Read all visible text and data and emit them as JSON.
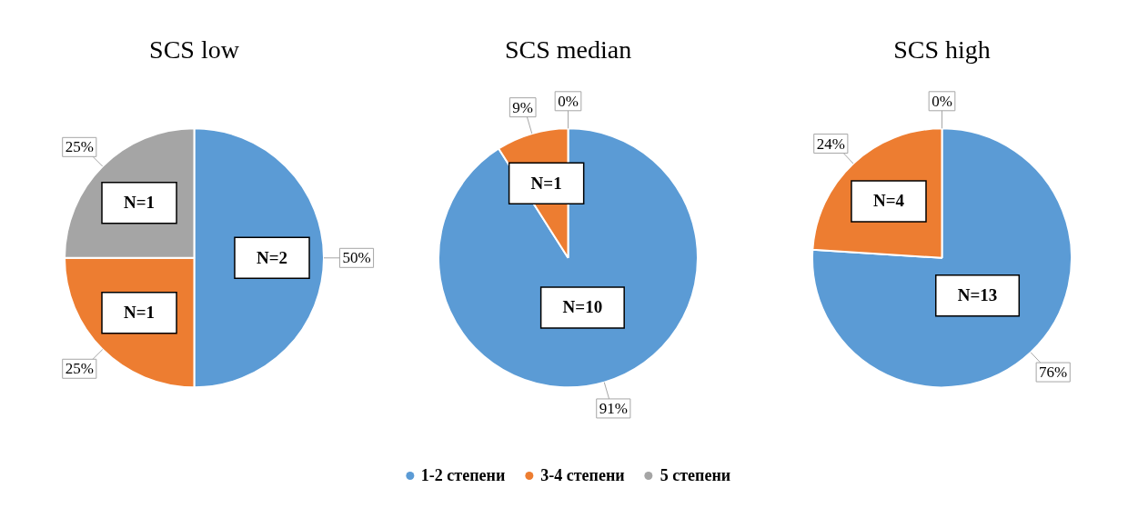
{
  "chart_data": [
    {
      "type": "pie",
      "title": "SCS low",
      "categories": [
        null,
        null,
        null
      ],
      "values": [
        50,
        25,
        25
      ],
      "colors": [
        "#5b9bd5",
        "#ed7d31",
        "#a5a5a5"
      ],
      "value_labels": [
        "50%",
        "25%",
        "25%"
      ],
      "annotations": [
        "N=2",
        "N=1",
        "N=1"
      ],
      "legend": false
    },
    {
      "type": "pie",
      "title": "SCS median",
      "categories": [
        "1-2 степени",
        "3-4 степени",
        "5 степени"
      ],
      "values": [
        91,
        9,
        0
      ],
      "colors": [
        "#5b9bd5",
        "#ed7d31",
        "#a5a5a5"
      ],
      "value_labels": [
        "91%",
        "9%",
        "0%"
      ],
      "annotations": [
        "N=10",
        "N=1"
      ],
      "legend": "bottom"
    },
    {
      "type": "pie",
      "title": "SCS high",
      "categories": [
        null,
        null,
        null
      ],
      "values": [
        76,
        24,
        0
      ],
      "colors": [
        "#5b9bd5",
        "#ed7d31",
        "#a5a5a5"
      ],
      "value_labels": [
        "76%",
        "24%",
        "0%"
      ],
      "annotations": [
        "N=13",
        "N=4"
      ],
      "legend": false
    }
  ]
}
